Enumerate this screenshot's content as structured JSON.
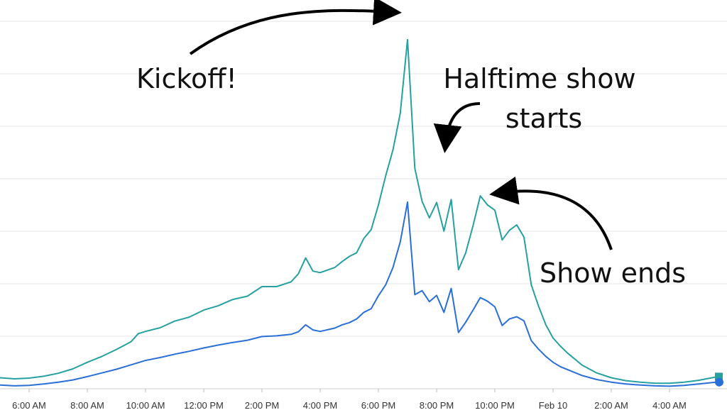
{
  "chart_data": {
    "type": "line",
    "title": "",
    "xlabel": "",
    "ylabel": "",
    "x_ticks": [
      "6:00 AM",
      "8:00 AM",
      "10:00 AM",
      "12:00 PM",
      "2:00 PM",
      "4:00 PM",
      "6:00 PM",
      "8:00 PM",
      "10:00 PM",
      "Feb 10",
      "2:00 AM",
      "4:00 AM"
    ],
    "x_range_hours": [
      5.0,
      29.9
    ],
    "y_range": [
      0,
      100
    ],
    "grid": true,
    "series": [
      {
        "key": "teal",
        "color": "#26a0a0",
        "marker": "square",
        "points": [
          [
            5.0,
            3
          ],
          [
            5.5,
            2.7
          ],
          [
            6.0,
            2.9
          ],
          [
            6.5,
            3.4
          ],
          [
            7.0,
            4.2
          ],
          [
            7.5,
            5.4
          ],
          [
            8.0,
            7.2
          ],
          [
            8.5,
            8.8
          ],
          [
            9.0,
            10.7
          ],
          [
            9.5,
            12.8
          ],
          [
            9.75,
            15
          ],
          [
            10.0,
            15.6
          ],
          [
            10.5,
            16.6
          ],
          [
            11.0,
            18.4
          ],
          [
            11.5,
            19.5
          ],
          [
            12.0,
            21.4
          ],
          [
            12.5,
            22.6
          ],
          [
            13.0,
            24.3
          ],
          [
            13.5,
            25.2
          ],
          [
            14.0,
            27.8
          ],
          [
            14.5,
            27.8
          ],
          [
            15.0,
            29.1
          ],
          [
            15.25,
            31.3
          ],
          [
            15.5,
            35.6
          ],
          [
            15.75,
            32
          ],
          [
            16.0,
            31.6
          ],
          [
            16.5,
            33
          ],
          [
            16.75,
            34.6
          ],
          [
            17.0,
            36
          ],
          [
            17.25,
            37
          ],
          [
            17.5,
            40.9
          ],
          [
            17.75,
            43.3
          ],
          [
            18.0,
            50
          ],
          [
            18.25,
            58
          ],
          [
            18.5,
            65
          ],
          [
            18.75,
            75
          ],
          [
            19.0,
            95
          ],
          [
            19.25,
            60
          ],
          [
            19.5,
            51
          ],
          [
            19.75,
            46.5
          ],
          [
            20.0,
            50.7
          ],
          [
            20.25,
            42.9
          ],
          [
            20.5,
            51.5
          ],
          [
            20.75,
            32.4
          ],
          [
            21.0,
            37
          ],
          [
            21.25,
            44.4
          ],
          [
            21.5,
            52.5
          ],
          [
            21.75,
            50
          ],
          [
            22.0,
            48.6
          ],
          [
            22.25,
            40.5
          ],
          [
            22.5,
            43.1
          ],
          [
            22.75,
            44.6
          ],
          [
            23.0,
            41.3
          ],
          [
            23.25,
            28.3
          ],
          [
            23.5,
            22.5
          ],
          [
            23.75,
            17.4
          ],
          [
            24.0,
            13.8
          ],
          [
            24.25,
            11.6
          ],
          [
            24.5,
            9.7
          ],
          [
            25.0,
            6.4
          ],
          [
            25.5,
            4.3
          ],
          [
            26.0,
            3
          ],
          [
            26.5,
            2.2
          ],
          [
            27.0,
            1.8
          ],
          [
            27.5,
            1.5
          ],
          [
            28.0,
            1.5
          ],
          [
            28.5,
            1.8
          ],
          [
            29.0,
            2.3
          ],
          [
            29.6,
            3.2
          ]
        ]
      },
      {
        "key": "blue",
        "color": "#2a6fd8",
        "marker": "circle",
        "points": [
          [
            5.0,
            1
          ],
          [
            5.5,
            0.8
          ],
          [
            6.0,
            0.9
          ],
          [
            6.5,
            1.3
          ],
          [
            7.0,
            1.8
          ],
          [
            7.5,
            2.4
          ],
          [
            8.0,
            3.3
          ],
          [
            8.5,
            4.3
          ],
          [
            9.0,
            5.3
          ],
          [
            9.5,
            6.5
          ],
          [
            9.75,
            7.1
          ],
          [
            10.0,
            7.7
          ],
          [
            10.5,
            8.5
          ],
          [
            11.0,
            9.4
          ],
          [
            11.5,
            10.2
          ],
          [
            12.0,
            11.1
          ],
          [
            12.5,
            11.9
          ],
          [
            13.0,
            12.6
          ],
          [
            13.5,
            13.2
          ],
          [
            14.0,
            14.2
          ],
          [
            14.5,
            14.4
          ],
          [
            15.0,
            14.8
          ],
          [
            15.25,
            15.5
          ],
          [
            15.5,
            17.4
          ],
          [
            15.75,
            16
          ],
          [
            16.0,
            15.6
          ],
          [
            16.5,
            16.5
          ],
          [
            16.75,
            17.4
          ],
          [
            17.0,
            18
          ],
          [
            17.25,
            19
          ],
          [
            17.5,
            20.8
          ],
          [
            17.75,
            21.8
          ],
          [
            18.0,
            25.3
          ],
          [
            18.25,
            28.3
          ],
          [
            18.5,
            33
          ],
          [
            18.75,
            40
          ],
          [
            19.0,
            50.8
          ],
          [
            19.25,
            25.6
          ],
          [
            19.5,
            26.7
          ],
          [
            19.75,
            23.7
          ],
          [
            20.0,
            25.4
          ],
          [
            20.25,
            20.8
          ],
          [
            20.5,
            27.3
          ],
          [
            20.75,
            15.3
          ],
          [
            21.0,
            18.1
          ],
          [
            21.25,
            21.4
          ],
          [
            21.5,
            24.8
          ],
          [
            21.75,
            23.8
          ],
          [
            22.0,
            22.3
          ],
          [
            22.25,
            17.2
          ],
          [
            22.5,
            19
          ],
          [
            22.75,
            19.6
          ],
          [
            23.0,
            18.5
          ],
          [
            23.25,
            13.1
          ],
          [
            23.5,
            10.8
          ],
          [
            23.75,
            8.8
          ],
          [
            24.0,
            7.2
          ],
          [
            24.25,
            6
          ],
          [
            24.5,
            5.2
          ],
          [
            25.0,
            3.6
          ],
          [
            25.5,
            2.5
          ],
          [
            26.0,
            1.8
          ],
          [
            26.5,
            1.3
          ],
          [
            27.0,
            1
          ],
          [
            27.5,
            0.8
          ],
          [
            28.0,
            0.7
          ],
          [
            28.5,
            0.9
          ],
          [
            29.0,
            1.3
          ],
          [
            29.6,
            1.8
          ]
        ]
      }
    ],
    "annotations": [
      {
        "key": "kickoff",
        "lines": [
          "Kickoff!"
        ]
      },
      {
        "key": "halftime",
        "lines": [
          "Halftime show",
          "starts"
        ]
      },
      {
        "key": "showends",
        "lines": [
          "Show ends"
        ]
      }
    ]
  }
}
